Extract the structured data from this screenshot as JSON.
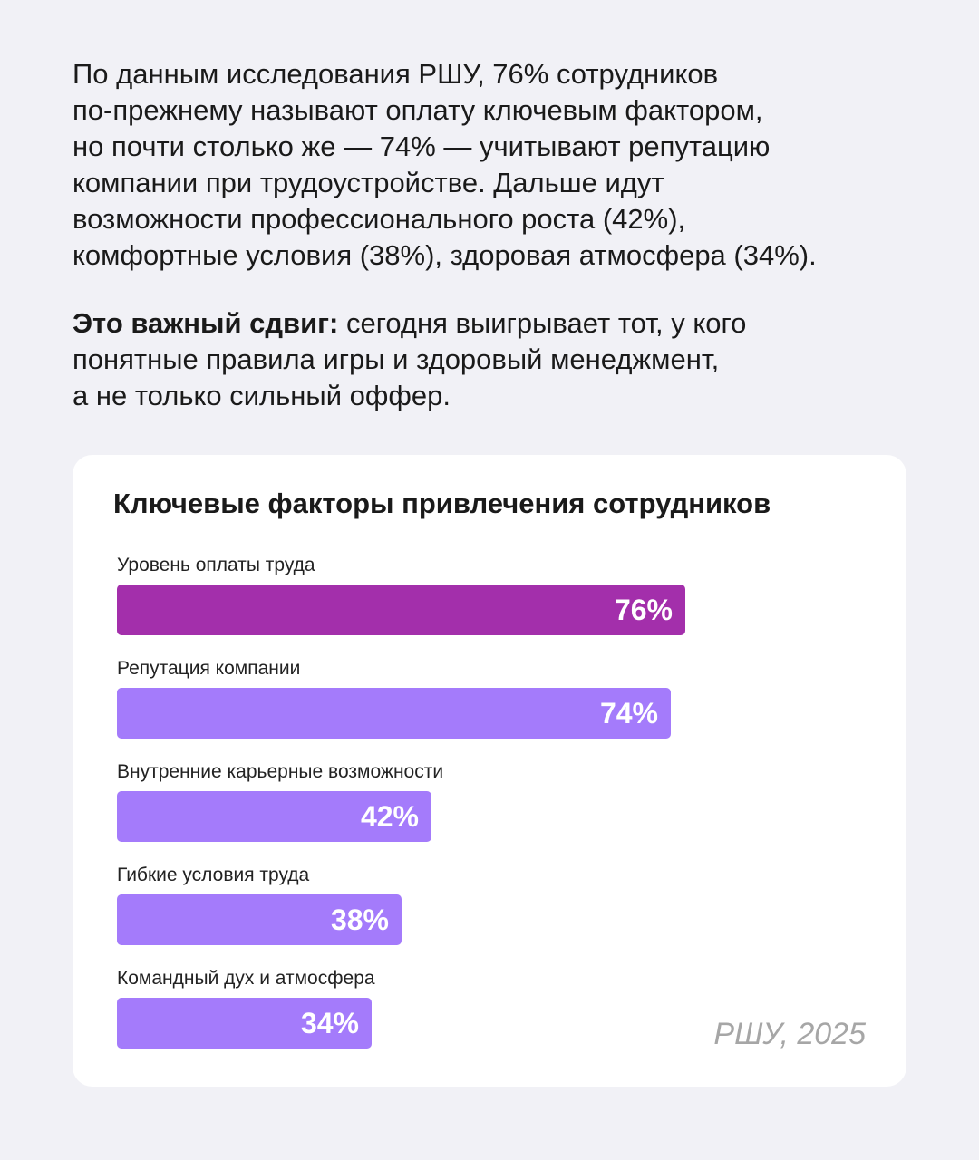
{
  "intro": {
    "paragraph1_lines": [
      "По данным исследования РШУ,  76% сотрудников",
      "по-прежнему называют оплату ключевым фактором,",
      "но почти столько же — 74% — учитывают репутацию",
      "компании при трудоустройстве. Дальше идут",
      "возможности профессионального роста (42%),",
      "комфортные условия (38%), здоровая атмосфера (34%)."
    ],
    "paragraph2_bold": "Это важный сдвиг:",
    "paragraph2_lines": [
      " сегодня выигрывает тот, у кого",
      "понятные правила игры и здоровый менеджмент,",
      "а не только сильный оффер."
    ]
  },
  "chart_data": {
    "type": "bar",
    "orientation": "horizontal",
    "title": "Ключевые факторы привлечения сотрудников",
    "categories": [
      "Уровень оплаты труда",
      "Репутация компании",
      "Внутренние карьерные возможности",
      "Гибкие условия труда",
      "Командный дух и атмосфера"
    ],
    "values": [
      76,
      74,
      42,
      38,
      34
    ],
    "value_labels": [
      "76%",
      "74%",
      "42%",
      "38%",
      "34%"
    ],
    "xlim": [
      0,
      100
    ],
    "grid": false,
    "legend": "none",
    "colors": {
      "highlight": "#a32fab",
      "default": "#a47bfb"
    },
    "highlight_index": 0
  },
  "source": "РШУ, 2025"
}
